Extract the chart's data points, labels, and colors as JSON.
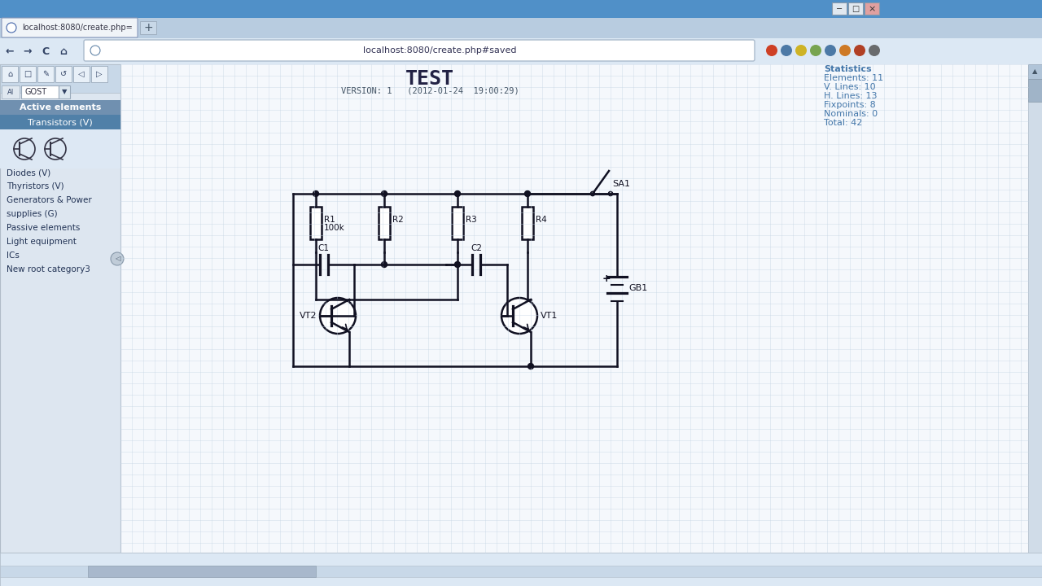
{
  "title": "TEST",
  "version_text": "VERSION: 1   (2012-01-24  19:00:29)",
  "url": "localhost:8080/create.php#saved",
  "tab_title": "localhost:8080/create.php=",
  "stats_text": [
    "Statistics",
    "Elements: 11",
    "V. Lines: 10",
    "H. Lines: 13",
    "Fixpoints: 8",
    "Nominals: 0",
    "Total: 42"
  ],
  "sidebar_items": [
    "Diodes (V)",
    "Thyristors (V)",
    "Generators & Power",
    "supplies (G)",
    "Passive elements",
    "Light equipment",
    "ICs",
    "New root category3"
  ],
  "cc": "#111122",
  "grid_color": "#c5d5e5",
  "canvas_bg": "#f5f8fc",
  "sidebar_bg": "#dde6f0",
  "nav_bg": "#dce8f4",
  "tab_bg": "#b8cce0",
  "titlebar_bg": "#5090c8",
  "stats_color": "#4477aa"
}
